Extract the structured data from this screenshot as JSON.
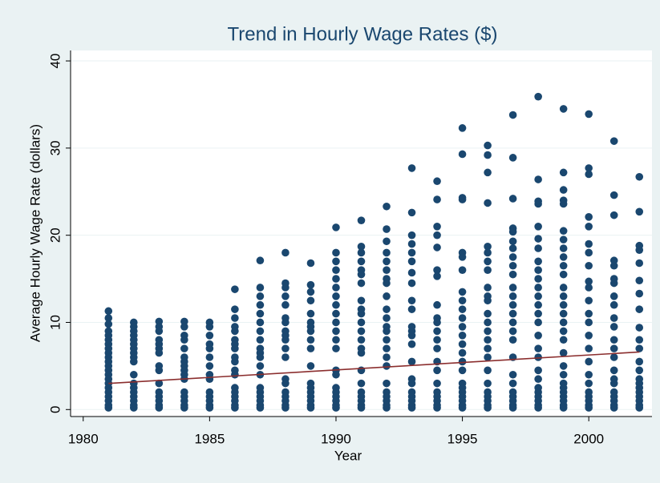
{
  "chart_data": {
    "type": "scatter",
    "title": "Trend in Hourly Wage Rates ($)",
    "xlabel": "Year",
    "ylabel": "Average Hourly Wage Rate (dollars)",
    "xlim": [
      1979.5,
      2002.5
    ],
    "xticks": [
      1980,
      1985,
      1990,
      1995,
      2000
    ],
    "ylim": [
      -0.8,
      41.2
    ],
    "yticks": [
      0,
      10,
      20,
      30,
      40
    ],
    "grid": true,
    "series": [
      {
        "type": "scatter",
        "color": "#1a476f",
        "x": [
          1981,
          1981,
          1981,
          1981,
          1981,
          1981,
          1981,
          1981,
          1981,
          1981,
          1981,
          1981,
          1981,
          1981,
          1981,
          1981,
          1981,
          1981,
          1981,
          1981,
          1981,
          1981,
          1982,
          1982,
          1982,
          1982,
          1982,
          1982,
          1982,
          1982,
          1982,
          1982,
          1982,
          1982,
          1982,
          1982,
          1982,
          1982,
          1982,
          1982,
          1983,
          1983,
          1983,
          1983,
          1983,
          1983,
          1983,
          1983,
          1983,
          1983,
          1983,
          1983,
          1983,
          1983,
          1983,
          1984,
          1984,
          1984,
          1984,
          1984,
          1984,
          1984,
          1984,
          1984,
          1984,
          1984,
          1984,
          1984,
          1984,
          1984,
          1984,
          1985,
          1985,
          1985,
          1985,
          1985,
          1985,
          1985,
          1985,
          1985,
          1985,
          1985,
          1985,
          1985,
          1985,
          1986,
          1986,
          1986,
          1986,
          1986,
          1986,
          1986,
          1986,
          1986,
          1986,
          1986,
          1986,
          1986,
          1986,
          1986,
          1986,
          1986,
          1986,
          1987,
          1987,
          1987,
          1987,
          1987,
          1987,
          1987,
          1987,
          1987,
          1987,
          1987,
          1987,
          1987,
          1987,
          1987,
          1987,
          1987,
          1987,
          1987,
          1988,
          1988,
          1988,
          1988,
          1988,
          1988,
          1988,
          1988,
          1988,
          1988,
          1988,
          1988,
          1988,
          1988,
          1988,
          1988,
          1988,
          1988,
          1988,
          1989,
          1989,
          1989,
          1989,
          1989,
          1989,
          1989,
          1989,
          1989,
          1989,
          1989,
          1989,
          1989,
          1989,
          1989,
          1989,
          1989,
          1989,
          1990,
          1990,
          1990,
          1990,
          1990,
          1990,
          1990,
          1990,
          1990,
          1990,
          1990,
          1990,
          1990,
          1990,
          1990,
          1990,
          1990,
          1990,
          1990,
          1990,
          1990,
          1991,
          1991,
          1991,
          1991,
          1991,
          1991,
          1991,
          1991,
          1991,
          1991,
          1991,
          1991,
          1991,
          1991,
          1991,
          1991,
          1991,
          1991,
          1991,
          1991,
          1991,
          1991,
          1992,
          1992,
          1992,
          1992,
          1992,
          1992,
          1992,
          1992,
          1992,
          1992,
          1992,
          1992,
          1992,
          1992,
          1992,
          1992,
          1992,
          1992,
          1992,
          1992,
          1992,
          1992,
          1992,
          1993,
          1993,
          1993,
          1993,
          1993,
          1993,
          1993,
          1993,
          1993,
          1993,
          1993,
          1993,
          1993,
          1993,
          1993,
          1993,
          1993,
          1993,
          1993,
          1993,
          1993,
          1993,
          1994,
          1994,
          1994,
          1994,
          1994,
          1994,
          1994,
          1994,
          1994,
          1994,
          1994,
          1994,
          1994,
          1994,
          1994,
          1994,
          1994,
          1994,
          1994,
          1994,
          1994,
          1995,
          1995,
          1995,
          1995,
          1995,
          1995,
          1995,
          1995,
          1995,
          1995,
          1995,
          1995,
          1995,
          1995,
          1995,
          1995,
          1995,
          1995,
          1995,
          1995,
          1995,
          1995,
          1995,
          1995,
          1996,
          1996,
          1996,
          1996,
          1996,
          1996,
          1996,
          1996,
          1996,
          1996,
          1996,
          1996,
          1996,
          1996,
          1996,
          1996,
          1996,
          1996,
          1996,
          1996,
          1996,
          1996,
          1996,
          1996,
          1997,
          1997,
          1997,
          1997,
          1997,
          1997,
          1997,
          1997,
          1997,
          1997,
          1997,
          1997,
          1997,
          1997,
          1997,
          1997,
          1997,
          1997,
          1997,
          1997,
          1997,
          1997,
          1997,
          1997,
          1997,
          1998,
          1998,
          1998,
          1998,
          1998,
          1998,
          1998,
          1998,
          1998,
          1998,
          1998,
          1998,
          1998,
          1998,
          1998,
          1998,
          1998,
          1998,
          1998,
          1998,
          1998,
          1998,
          1998,
          1998,
          1998,
          1998,
          1999,
          1999,
          1999,
          1999,
          1999,
          1999,
          1999,
          1999,
          1999,
          1999,
          1999,
          1999,
          1999,
          1999,
          1999,
          1999,
          1999,
          1999,
          1999,
          1999,
          1999,
          1999,
          1999,
          1999,
          1999,
          1999,
          1999,
          1999,
          2000,
          2000,
          2000,
          2000,
          2000,
          2000,
          2000,
          2000,
          2000,
          2000,
          2000,
          2000,
          2000,
          2000,
          2000,
          2000,
          2000,
          2000,
          2000,
          2000,
          2000,
          2000,
          2000,
          2001,
          2001,
          2001,
          2001,
          2001,
          2001,
          2001,
          2001,
          2001,
          2001,
          2001,
          2001,
          2001,
          2001,
          2001,
          2001,
          2001,
          2001,
          2001,
          2001,
          2001,
          2001,
          2002,
          2002,
          2002,
          2002,
          2002,
          2002,
          2002,
          2002,
          2002,
          2002,
          2002,
          2002,
          2002,
          2002,
          2002,
          2002,
          2002,
          2002,
          2002,
          2002,
          2002
        ],
        "values": [
          11.3,
          10.5,
          9.8,
          9,
          8.5,
          8,
          7.5,
          7,
          6.5,
          6,
          5.5,
          5,
          4.5,
          4,
          3.5,
          3,
          2.5,
          2,
          1.5,
          1,
          0.5,
          0.2,
          10,
          9.5,
          9,
          8.5,
          8,
          7.5,
          7,
          6.5,
          6,
          5.5,
          4,
          3,
          2.5,
          2,
          1.5,
          1,
          0.5,
          0.2,
          10.1,
          9.5,
          9,
          8,
          7.5,
          7,
          6.5,
          5,
          4.5,
          3,
          2,
          1.5,
          1,
          0.5,
          0.2,
          10.1,
          9.5,
          8.5,
          8,
          7,
          6,
          5.5,
          5,
          4.5,
          4,
          3.5,
          2,
          1.5,
          1,
          0.5,
          0.2,
          10,
          9.5,
          8.5,
          7.5,
          7,
          6,
          5,
          4,
          3.5,
          2,
          1.5,
          1,
          0.5,
          0.2,
          13.8,
          11.5,
          10.5,
          9.5,
          9,
          8,
          7.5,
          7,
          6,
          5.5,
          4.5,
          4,
          2.5,
          2,
          1.5,
          1,
          0.5,
          0.2,
          17.1,
          14,
          13,
          12,
          11,
          10,
          9,
          8,
          7,
          6.5,
          6,
          5,
          4,
          2.5,
          2,
          1.5,
          1,
          0.5,
          0.2,
          18,
          14.5,
          14,
          13,
          12,
          10.5,
          10,
          9,
          8.5,
          8,
          7,
          6,
          3.5,
          3,
          2,
          1.5,
          1,
          0.5,
          0.2,
          16.8,
          14.3,
          13.5,
          12.5,
          11,
          10,
          9.5,
          9,
          8,
          7,
          5,
          3,
          2.5,
          2,
          1.5,
          1,
          0.5,
          0.2,
          20.9,
          18,
          17,
          16,
          15,
          14,
          13,
          12,
          11,
          10,
          9,
          8,
          7,
          4.5,
          4,
          2.5,
          2,
          1.5,
          1,
          0.5,
          0.2,
          21.7,
          18.7,
          18,
          17,
          16,
          15.5,
          14.5,
          12.5,
          11.5,
          11,
          10,
          9,
          8,
          7,
          6.5,
          4.5,
          3,
          2,
          1.5,
          1,
          0.5,
          0.2,
          23.3,
          20.7,
          19.3,
          18,
          17,
          16,
          15,
          14.5,
          13,
          11.5,
          10.5,
          9.5,
          9,
          8,
          7,
          6,
          5,
          3,
          2,
          1.5,
          1,
          0.5,
          0.2,
          27.7,
          22.6,
          20,
          19,
          18,
          17,
          15.7,
          14.5,
          12.5,
          11.5,
          9.5,
          9,
          8.5,
          7.5,
          5.5,
          3.5,
          3,
          2,
          1.5,
          1,
          0.5,
          0.2,
          26.2,
          24.1,
          21,
          20,
          18.6,
          16,
          15.3,
          12,
          10.5,
          10,
          9,
          8,
          7,
          5.5,
          4.5,
          3,
          2,
          1.5,
          1,
          0.5,
          0.2,
          32.3,
          29.3,
          24.3,
          24.1,
          18,
          17.5,
          16,
          13.5,
          12.5,
          11.5,
          10.5,
          9.5,
          8.5,
          7.5,
          6.5,
          5.5,
          4.5,
          3,
          2.5,
          2,
          1.5,
          1,
          0.5,
          0.2,
          30.3,
          29.2,
          27.2,
          23.7,
          18.7,
          18,
          17,
          16,
          14,
          13,
          12.5,
          11,
          10,
          9,
          8,
          7,
          6,
          4.5,
          3,
          2,
          1.5,
          1,
          0.5,
          0.2,
          33.8,
          28.9,
          24.2,
          20.8,
          20.4,
          19.3,
          18.5,
          17.5,
          16.5,
          15.5,
          14,
          13,
          12,
          11,
          10,
          9,
          8,
          6,
          4,
          3,
          2,
          1.5,
          1,
          0.5,
          0.2,
          35.9,
          26.4,
          23.9,
          23.6,
          21,
          19.6,
          18.5,
          17,
          16,
          15,
          14,
          13,
          12,
          11,
          10,
          8.5,
          7,
          6,
          4.5,
          3.5,
          2.5,
          2,
          1.5,
          1,
          0.5,
          0.2,
          34.5,
          27.2,
          25.2,
          24,
          23.6,
          20.5,
          19.5,
          18.5,
          17.5,
          16.5,
          15.5,
          14,
          13,
          12,
          11,
          10,
          9,
          8,
          6.5,
          5,
          4,
          3,
          2.5,
          2,
          1.5,
          1,
          0.5,
          0.2,
          33.9,
          27.7,
          27,
          22.1,
          21,
          19,
          18,
          16.5,
          14.7,
          14,
          12.5,
          11,
          10,
          8.5,
          7,
          5.5,
          4,
          3,
          2,
          1.5,
          1,
          0.5,
          0.2,
          30.8,
          24.6,
          22.3,
          17.1,
          16.5,
          15,
          14.5,
          13,
          12,
          10.5,
          9.5,
          8,
          7,
          6,
          4.5,
          3.5,
          3,
          2,
          1.5,
          1,
          0.5,
          0.2,
          26.7,
          22.7,
          18.8,
          18.3,
          16.8,
          14.8,
          13.3,
          11.5,
          9.4,
          8,
          7,
          5.5,
          4.5,
          3.5,
          3,
          2.5,
          2,
          1.5,
          1,
          0.5,
          0.2
        ]
      },
      {
        "type": "line",
        "color": "#8b2e2e",
        "x": [
          1981,
          2002
        ],
        "values": [
          3.0,
          6.6
        ]
      }
    ]
  }
}
